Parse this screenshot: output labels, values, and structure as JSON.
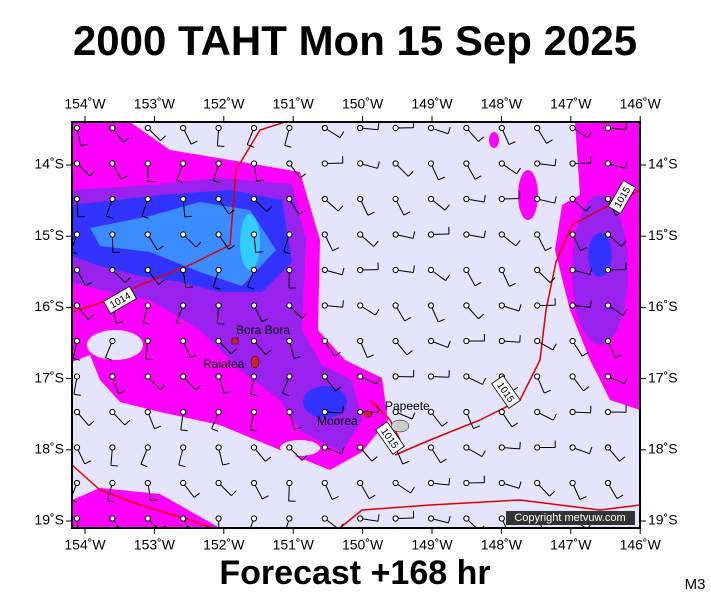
{
  "title": "2000 TAHT Mon 15 Sep 2025",
  "longitude_labels": [
    "154˚W",
    "153˚W",
    "152˚W",
    "151˚W",
    "150˚W",
    "149˚W",
    "148˚W",
    "147˚W",
    "146˚W"
  ],
  "latitude_labels": [
    "14˚S",
    "15˚S",
    "16˚S",
    "17˚S",
    "18˚S",
    "19˚S"
  ],
  "places": [
    {
      "label": "Bora Bora"
    },
    {
      "label": "Raiatea"
    },
    {
      "label": "Moorea"
    },
    {
      "label": "Papeete"
    }
  ],
  "isobar_labels": [
    "1014",
    "1015",
    "1015",
    "1015"
  ],
  "copyright": "Copyright metvuw.com",
  "footer": "Forecast +168 hr",
  "code": "M3"
}
